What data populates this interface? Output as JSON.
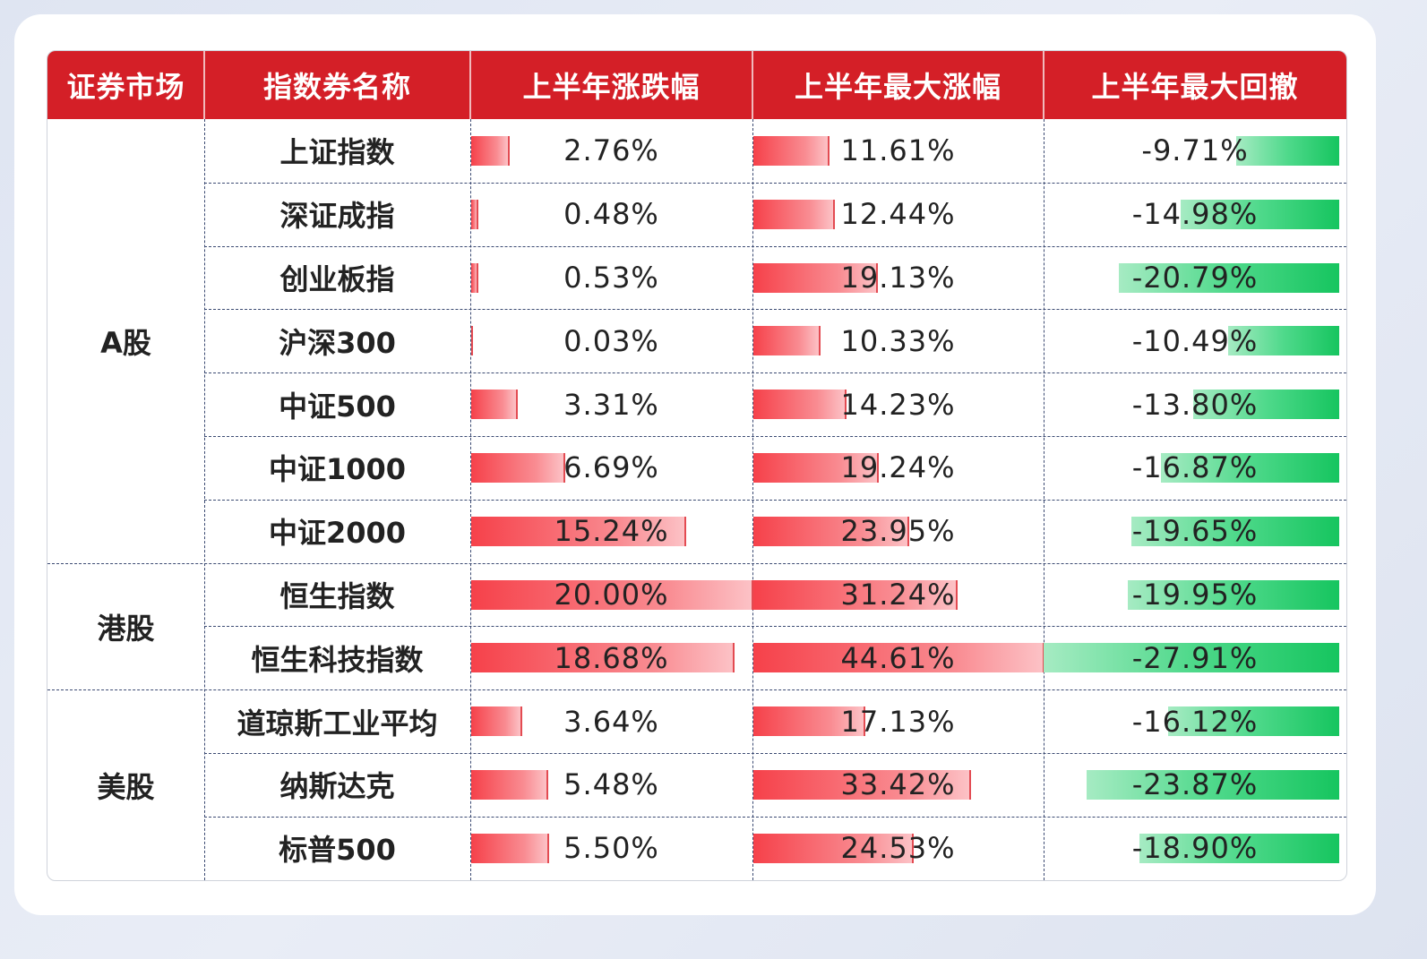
{
  "chart_data": {
    "type": "table",
    "headers": [
      "证券市场",
      "指数券名称",
      "上半年涨跌幅",
      "上半年最大涨幅",
      "上半年最大回撤"
    ],
    "markets": [
      {
        "label": "A股",
        "row_start": 0,
        "row_end": 6
      },
      {
        "label": "港股",
        "row_start": 7,
        "row_end": 8
      },
      {
        "label": "美股",
        "row_start": 9,
        "row_end": 11
      }
    ],
    "rows": [
      {
        "name": "上证指数",
        "change": 2.76,
        "change_label": "2.76%",
        "max_gain": 11.61,
        "max_gain_label": "11.61%",
        "drawdown": -9.71,
        "drawdown_label": "-9.71%"
      },
      {
        "name": "深证成指",
        "change": 0.48,
        "change_label": "0.48%",
        "max_gain": 12.44,
        "max_gain_label": "12.44%",
        "drawdown": -14.98,
        "drawdown_label": "-14.98%"
      },
      {
        "name": "创业板指",
        "change": 0.53,
        "change_label": "0.53%",
        "max_gain": 19.13,
        "max_gain_label": "19.13%",
        "drawdown": -20.79,
        "drawdown_label": "-20.79%"
      },
      {
        "name": "沪深300",
        "change": 0.03,
        "change_label": "0.03%",
        "max_gain": 10.33,
        "max_gain_label": "10.33%",
        "drawdown": -10.49,
        "drawdown_label": "-10.49%"
      },
      {
        "name": "中证500",
        "change": 3.31,
        "change_label": "3.31%",
        "max_gain": 14.23,
        "max_gain_label": "14.23%",
        "drawdown": -13.8,
        "drawdown_label": "-13.80%"
      },
      {
        "name": "中证1000",
        "change": 6.69,
        "change_label": "6.69%",
        "max_gain": 19.24,
        "max_gain_label": "19.24%",
        "drawdown": -16.87,
        "drawdown_label": "-16.87%"
      },
      {
        "name": "中证2000",
        "change": 15.24,
        "change_label": "15.24%",
        "max_gain": 23.95,
        "max_gain_label": "23.95%",
        "drawdown": -19.65,
        "drawdown_label": "-19.65%"
      },
      {
        "name": "恒生指数",
        "change": 20.0,
        "change_label": "20.00%",
        "max_gain": 31.24,
        "max_gain_label": "31.24%",
        "drawdown": -19.95,
        "drawdown_label": "-19.95%"
      },
      {
        "name": "恒生科技指数",
        "change": 18.68,
        "change_label": "18.68%",
        "max_gain": 44.61,
        "max_gain_label": "44.61%",
        "drawdown": -27.91,
        "drawdown_label": "-27.91%"
      },
      {
        "name": "道琼斯工业平均",
        "change": 3.64,
        "change_label": "3.64%",
        "max_gain": 17.13,
        "max_gain_label": "17.13%",
        "drawdown": -16.12,
        "drawdown_label": "-16.12%"
      },
      {
        "name": "纳斯达克",
        "change": 5.48,
        "change_label": "5.48%",
        "max_gain": 33.42,
        "max_gain_label": "33.42%",
        "drawdown": -23.87,
        "drawdown_label": "-23.87%"
      },
      {
        "name": "标普500",
        "change": 5.5,
        "change_label": "5.50%",
        "max_gain": 24.53,
        "max_gain_label": "24.53%",
        "drawdown": -18.9,
        "drawdown_label": "-18.90%"
      }
    ],
    "colors": {
      "header": "#d41f27",
      "gain_bar": "#f6414a",
      "drawdown_bar": "#16c55f"
    }
  }
}
